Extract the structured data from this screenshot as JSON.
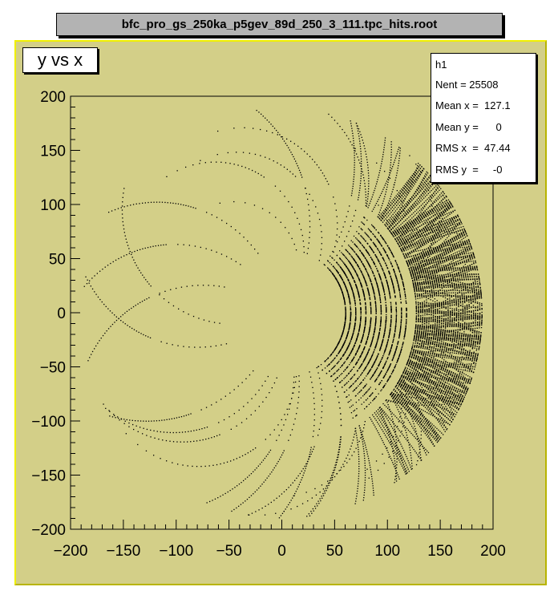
{
  "window_title": "bfc_pro_gs_250ka_p5gev_89d_250_3_111.tpc_hits.root",
  "colors": {
    "pad": "#d3cf88",
    "title_box": "#b3b3b3",
    "marker": "#000000"
  },
  "chart_data": {
    "type": "scatter",
    "title": "y vs x",
    "xlim": [
      -200,
      200
    ],
    "ylim": [
      -200,
      200
    ],
    "x_ticks": [
      "-200",
      "-150",
      "-100",
      "-50",
      "0",
      "50",
      "100",
      "150",
      "200"
    ],
    "y_ticks": [
      "200",
      "150",
      "100",
      "50",
      "0",
      "-50",
      "-100",
      "-150",
      "-200"
    ],
    "grid": false,
    "legend": "none",
    "description_of_points": "TPC hit positions; dense on right side (x 50 to 190), sparse curved tracks elsewhere",
    "stats": {
      "name": "h1",
      "entries_label": "Nent = 25508",
      "mean_x_label": "Mean x =  127.1",
      "mean_y_label": "Mean y =      0",
      "rms_x_label": "RMS x  =  47.44",
      "rms_y_label": "RMS y  =     -0"
    }
  }
}
